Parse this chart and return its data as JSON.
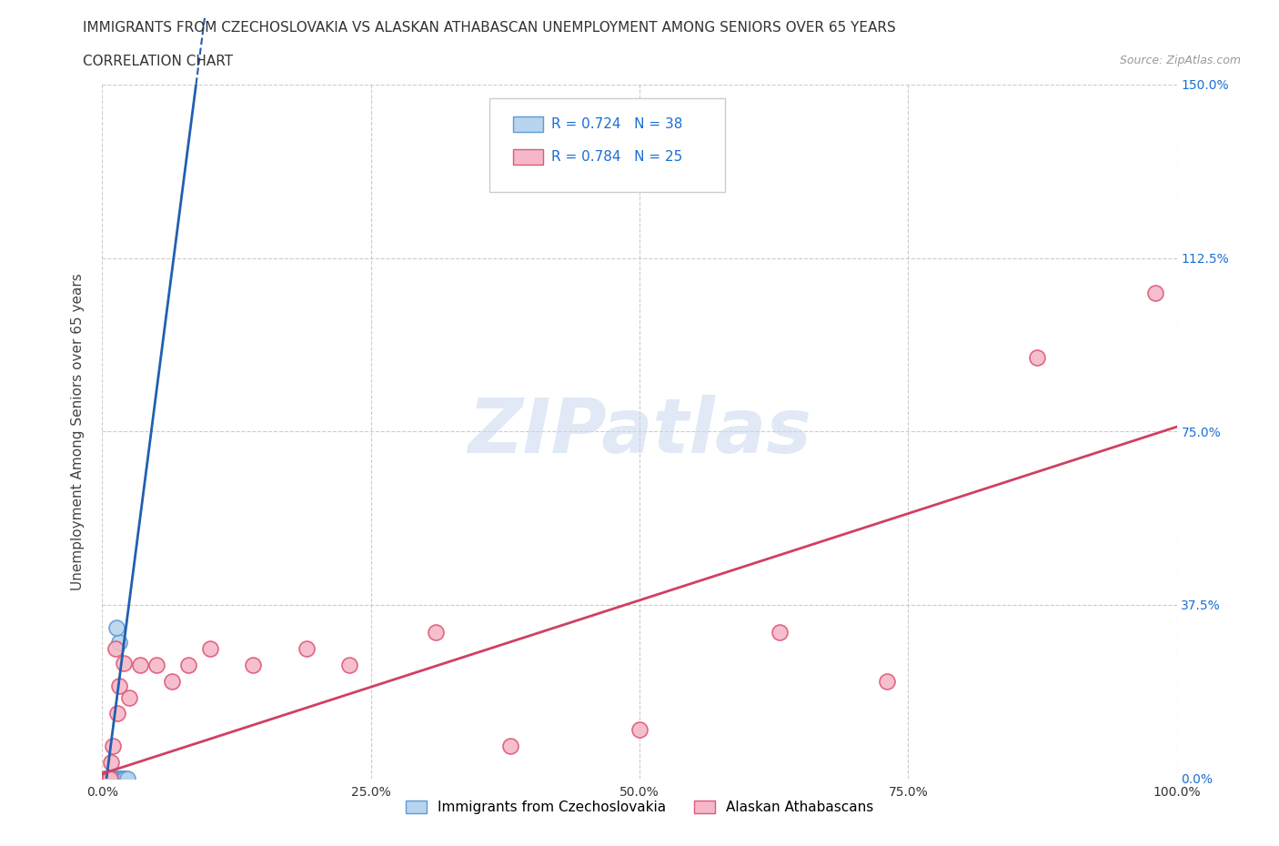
{
  "title_line1": "IMMIGRANTS FROM CZECHOSLOVAKIA VS ALASKAN ATHABASCAN UNEMPLOYMENT AMONG SENIORS OVER 65 YEARS",
  "title_line2": "CORRELATION CHART",
  "source": "Source: ZipAtlas.com",
  "ylabel": "Unemployment Among Seniors over 65 years",
  "xlim": [
    0.0,
    1.0
  ],
  "ylim": [
    0.0,
    1.5
  ],
  "yticks": [
    0.0,
    0.375,
    0.75,
    1.125,
    1.5
  ],
  "ytick_labels": [
    "0.0%",
    "37.5%",
    "75.0%",
    "112.5%",
    "150.0%"
  ],
  "xtick_labels": [
    "0.0%",
    "25.0%",
    "50.0%",
    "75.0%",
    "100.0%"
  ],
  "series1_color": "#b8d4ee",
  "series1_edgecolor": "#5b9bd5",
  "series1_label": "Immigrants from Czechoslovakia",
  "series1_R": "0.724",
  "series1_N": "38",
  "series2_color": "#f4b8c8",
  "series2_edgecolor": "#e05878",
  "series2_label": "Alaskan Athabascans",
  "series2_R": "0.784",
  "series2_N": "25",
  "trendline1_color": "#2060b0",
  "trendline2_color": "#d04060",
  "legend_R_color": "#1a6fd4",
  "watermark_color": "#c8d8ee",
  "s1_x": [
    0.002,
    0.003,
    0.003,
    0.004,
    0.004,
    0.004,
    0.005,
    0.005,
    0.005,
    0.005,
    0.006,
    0.006,
    0.006,
    0.007,
    0.007,
    0.007,
    0.008,
    0.008,
    0.008,
    0.009,
    0.009,
    0.01,
    0.01,
    0.011,
    0.012,
    0.012,
    0.013,
    0.014,
    0.015,
    0.015,
    0.016,
    0.018,
    0.019,
    0.02,
    0.021,
    0.023,
    0.016,
    0.013
  ],
  "s1_y": [
    0.0,
    0.0,
    0.0,
    0.0,
    0.0,
    0.0,
    0.0,
    0.0,
    0.0,
    0.0,
    0.0,
    0.0,
    0.0,
    0.0,
    0.0,
    0.0,
    0.0,
    0.0,
    0.0,
    0.0,
    0.0,
    0.0,
    0.0,
    0.0,
    0.0,
    0.0,
    0.0,
    0.0,
    0.0,
    0.0,
    0.0,
    0.0,
    0.0,
    0.0,
    0.0,
    0.0,
    0.295,
    0.325
  ],
  "s2_x": [
    0.004,
    0.006,
    0.007,
    0.008,
    0.01,
    0.012,
    0.014,
    0.016,
    0.02,
    0.025,
    0.035,
    0.05,
    0.065,
    0.08,
    0.1,
    0.14,
    0.19,
    0.23,
    0.31,
    0.38,
    0.5,
    0.63,
    0.73,
    0.87,
    0.98
  ],
  "s2_y": [
    0.0,
    0.0,
    0.0,
    0.035,
    0.07,
    0.28,
    0.14,
    0.2,
    0.25,
    0.175,
    0.245,
    0.245,
    0.21,
    0.245,
    0.28,
    0.245,
    0.28,
    0.245,
    0.315,
    0.07,
    0.105,
    0.315,
    0.21,
    0.91,
    1.05
  ],
  "trendline1_slope": 18.0,
  "trendline1_intercept": -0.07,
  "trendline2_slope": 0.75,
  "trendline2_intercept": 0.01
}
